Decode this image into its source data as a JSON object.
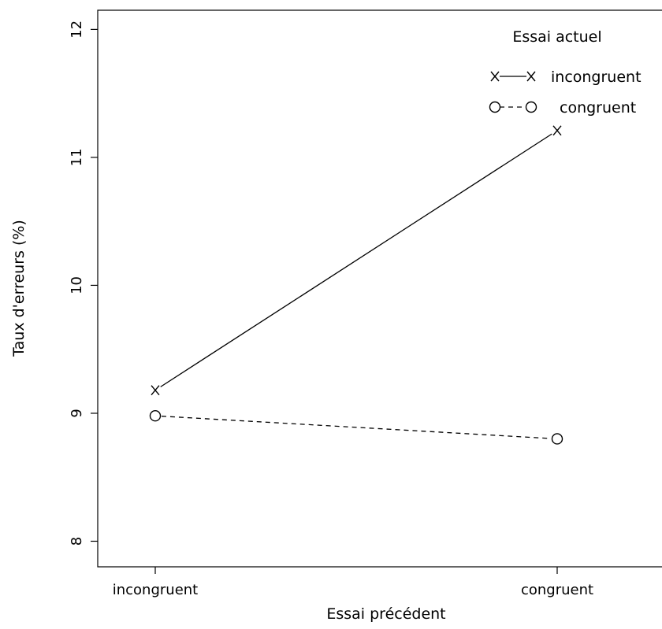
{
  "chart_data": {
    "type": "line",
    "x": [
      "incongruent",
      "congruent"
    ],
    "xlabel": "Essai précédent",
    "ylabel": "Taux d'erreurs (%)",
    "ylim": [
      7.8,
      12.15
    ],
    "yticks": [
      8,
      9,
      10,
      11,
      12
    ],
    "legend": {
      "title": "Essai actuel",
      "placement": "top-right"
    },
    "series": [
      {
        "name": "incongruent",
        "values": [
          9.18,
          11.21
        ],
        "marker": "x",
        "line_style": "solid"
      },
      {
        "name": "congruent",
        "values": [
          8.98,
          8.8
        ],
        "marker": "circle",
        "line_style": "dashed"
      }
    ],
    "colors": {
      "ink": "#000000",
      "background": "#ffffff"
    }
  }
}
